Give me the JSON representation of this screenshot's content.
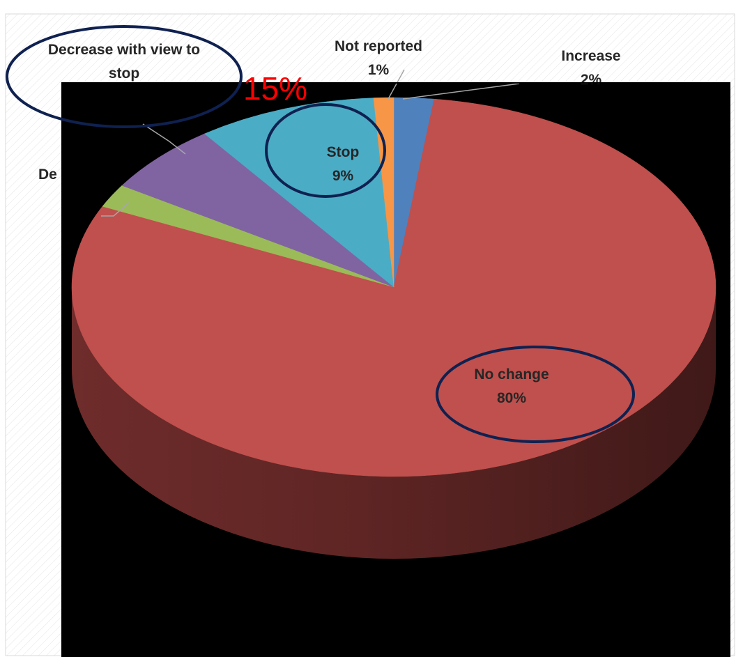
{
  "chart_data": {
    "type": "pie",
    "title": "",
    "slices": [
      {
        "label": "Increase",
        "label_lines": [
          "Increase",
          "2%"
        ],
        "value": 2,
        "color": "#4f81bd"
      },
      {
        "label": "No change",
        "label_lines": [
          "No change",
          "80%"
        ],
        "value": 80,
        "color": "#c0504d"
      },
      {
        "label": "Decrease",
        "label_lines": [
          "De"
        ],
        "value": 2,
        "color": "#9bbb59"
      },
      {
        "label": "Decrease with view to stop",
        "label_lines": [
          "Decrease with view to",
          "stop"
        ],
        "value": 6,
        "color": "#8064a2"
      },
      {
        "label": "Stop",
        "label_lines": [
          "Stop",
          "9%"
        ],
        "value": 9,
        "color": "#4bacc6"
      },
      {
        "label": "Not reported",
        "label_lines": [
          "Not reported",
          "1%"
        ],
        "value": 1,
        "color": "#f79646"
      }
    ],
    "annotation": {
      "text": "15%",
      "color": "#ff0000"
    },
    "highlight_color": "#0f2150",
    "plot_background": "#000000",
    "page_background": "#ffffff"
  }
}
